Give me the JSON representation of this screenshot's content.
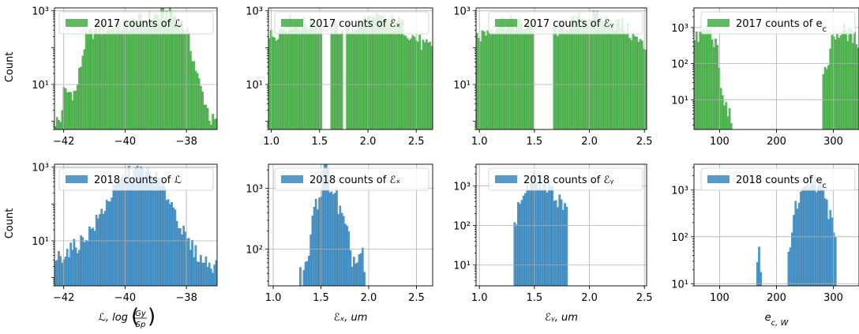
{
  "colors": {
    "green": "#2ca02c",
    "blue": "#1f77b4",
    "grid": "#b0b0b0",
    "edge": "#000000"
  },
  "y_axis_label": "Count",
  "chart_data": [
    {
      "type": "bar",
      "legend": "2017 counts of ℒ",
      "color": "#2ca02c",
      "xlim": [
        -42.3,
        -37.0
      ],
      "x_ticks": [
        -42,
        -40,
        -38
      ],
      "x_tick_labels": [
        "−42",
        "−40",
        "−38"
      ],
      "ylog": true,
      "ylim": [
        0.6,
        1200
      ],
      "y_ticks": [
        10,
        1000
      ],
      "y_tick_labels": [
        "10¹",
        "10³"
      ],
      "xlabel": "",
      "ylabel": "Count",
      "grid": true,
      "legend_loc": "top-right",
      "profile": [
        [
          -42.1,
          1
        ],
        [
          -42.0,
          6
        ],
        [
          -41.6,
          6
        ],
        [
          -41.3,
          150
        ],
        [
          -41.0,
          300
        ],
        [
          -40.0,
          400
        ],
        [
          -39.0,
          700
        ],
        [
          -38.5,
          900
        ],
        [
          -38.0,
          300
        ],
        [
          -37.6,
          12
        ],
        [
          -37.3,
          2
        ],
        [
          -37.2,
          1
        ]
      ]
    },
    {
      "type": "bar",
      "legend": "2017 counts of ℰₓ",
      "color": "#2ca02c",
      "xlim": [
        0.97,
        2.67
      ],
      "x_ticks": [
        1.0,
        1.5,
        2.0,
        2.5
      ],
      "x_tick_labels": [
        "1.0",
        "1.5",
        "2.0",
        "2.5"
      ],
      "ylog": true,
      "ylim": [
        0.6,
        1200
      ],
      "y_ticks": [
        10,
        1000
      ],
      "y_tick_labels": [
        "10¹",
        "10³"
      ],
      "xlabel": "",
      "ylabel": "",
      "grid": true,
      "legend_loc": "top-right",
      "gaps": [
        [
          1.52,
          1.62
        ],
        [
          1.74,
          1.78
        ]
      ],
      "profile": [
        [
          1.0,
          200
        ],
        [
          1.2,
          500
        ],
        [
          1.5,
          400
        ],
        [
          1.8,
          300
        ],
        [
          2.0,
          600
        ],
        [
          2.3,
          500
        ],
        [
          2.6,
          100
        ]
      ]
    },
    {
      "type": "bar",
      "legend": "2017 counts of ℰᵧ",
      "color": "#2ca02c",
      "xlim": [
        0.97,
        2.52
      ],
      "x_ticks": [
        1.0,
        1.5,
        2.0,
        2.5
      ],
      "x_tick_labels": [
        "1.0",
        "1.5",
        "2.0",
        "2.5"
      ],
      "ylog": true,
      "ylim": [
        0.6,
        1200
      ],
      "y_ticks": [
        10,
        1000
      ],
      "y_tick_labels": [
        "10¹",
        "10³"
      ],
      "xlabel": "",
      "ylabel": "",
      "grid": true,
      "legend_loc": "top-right",
      "gaps": [
        [
          1.5,
          1.67
        ]
      ],
      "profile": [
        [
          1.0,
          200
        ],
        [
          1.2,
          500
        ],
        [
          1.4,
          400
        ],
        [
          1.7,
          300
        ],
        [
          2.0,
          700
        ],
        [
          2.3,
          400
        ],
        [
          2.5,
          100
        ]
      ]
    },
    {
      "type": "bar",
      "legend": "2017 counts of e_c",
      "color": "#2ca02c",
      "xlim": [
        55,
        345
      ],
      "x_ticks": [
        100,
        200,
        300
      ],
      "x_tick_labels": [
        "100",
        "200",
        "300"
      ],
      "ylog": true,
      "ylim": [
        1.5,
        3500
      ],
      "y_ticks": [
        10,
        100,
        1000
      ],
      "y_tick_labels": [
        "10¹",
        "10²",
        "10³"
      ],
      "xlabel": "",
      "ylabel": "",
      "grid": true,
      "legend_loc": "top-right",
      "ranges": [
        [
          55,
          124
        ],
        [
          280,
          345
        ]
      ],
      "profile": [
        [
          55,
          400
        ],
        [
          80,
          1000
        ],
        [
          95,
          300
        ],
        [
          105,
          10
        ],
        [
          115,
          5
        ],
        [
          124,
          2
        ],
        [
          280,
          20
        ],
        [
          300,
          600
        ],
        [
          320,
          800
        ],
        [
          345,
          400
        ]
      ]
    },
    {
      "type": "bar",
      "legend": "2018 counts of ℒ",
      "color": "#1f77b4",
      "xlim": [
        -42.3,
        -37.0
      ],
      "x_ticks": [
        -42,
        -40,
        -38
      ],
      "x_tick_labels": [
        "−42",
        "−40",
        "−38"
      ],
      "ylog": true,
      "ylim": [
        0.6,
        1200
      ],
      "y_ticks": [
        10,
        1000
      ],
      "y_tick_labels": [
        "10¹",
        "10³"
      ],
      "xlabel": "ℒ, log",
      "xlabel_num": "Gy",
      "xlabel_den": "Sp",
      "ylabel": "Count",
      "grid": true,
      "legend_loc": "top-right",
      "profile": [
        [
          -42.3,
          3
        ],
        [
          -41.5,
          8
        ],
        [
          -41.0,
          25
        ],
        [
          -40.5,
          150
        ],
        [
          -40.0,
          600
        ],
        [
          -39.5,
          800
        ],
        [
          -39.0,
          500
        ],
        [
          -38.5,
          120
        ],
        [
          -38.0,
          10
        ],
        [
          -37.5,
          3
        ],
        [
          -37.0,
          2
        ]
      ]
    },
    {
      "type": "bar",
      "legend": "2018 counts of ℰₓ",
      "color": "#1f77b4",
      "xlim": [
        0.95,
        2.67
      ],
      "x_ticks": [
        1.0,
        1.5,
        2.0,
        2.5
      ],
      "x_tick_labels": [
        "1.0",
        "1.5",
        "2.0",
        "2.5"
      ],
      "ylog": true,
      "ylim": [
        25,
        2500
      ],
      "y_ticks": [
        100,
        1000
      ],
      "y_tick_labels": [
        "10²",
        "10³"
      ],
      "xlabel": "ℰₓ, um",
      "ylabel": "",
      "grid": true,
      "legend_loc": "top-right",
      "ranges": [
        [
          1.28,
          1.97
        ]
      ],
      "profile": [
        [
          1.28,
          30
        ],
        [
          1.35,
          50
        ],
        [
          1.45,
          600
        ],
        [
          1.55,
          2000
        ],
        [
          1.65,
          800
        ],
        [
          1.75,
          200
        ],
        [
          1.85,
          60
        ],
        [
          1.93,
          80
        ],
        [
          1.97,
          30
        ]
      ]
    },
    {
      "type": "bar",
      "legend": "2018 counts of ℰᵧ",
      "color": "#1f77b4",
      "xlim": [
        0.97,
        2.52
      ],
      "x_ticks": [
        1.0,
        1.5,
        2.0,
        2.5
      ],
      "x_tick_labels": [
        "1.0",
        "1.5",
        "2.0",
        "2.5"
      ],
      "ylog": true,
      "ylim": [
        3,
        3500
      ],
      "y_ticks": [
        10,
        100,
        1000
      ],
      "y_tick_labels": [
        "10¹",
        "10²",
        "10³"
      ],
      "xlabel": "ℰᵧ, um",
      "ylabel": "",
      "grid": true,
      "legend_loc": "top-right",
      "ranges": [
        [
          1.32,
          1.81
        ]
      ],
      "profile": [
        [
          1.32,
          100
        ],
        [
          1.38,
          500
        ],
        [
          1.5,
          1500
        ],
        [
          1.6,
          1000
        ],
        [
          1.7,
          500
        ],
        [
          1.81,
          300
        ]
      ]
    },
    {
      "type": "bar",
      "legend": "2018 counts of e_c",
      "color": "#1f77b4",
      "xlim": [
        55,
        345
      ],
      "x_ticks": [
        100,
        200,
        300
      ],
      "x_tick_labels": [
        "100",
        "200",
        "300"
      ],
      "ylog": true,
      "ylim": [
        9,
        3500
      ],
      "y_ticks": [
        10,
        100,
        1000
      ],
      "y_tick_labels": [
        "10¹",
        "10²",
        "10³"
      ],
      "xlabel": "e_c, W",
      "ylabel": "",
      "grid": true,
      "legend_loc": "top-right",
      "ranges": [
        [
          165,
          175
        ],
        [
          220,
          305
        ]
      ],
      "profile": [
        [
          165,
          12
        ],
        [
          168,
          130
        ],
        [
          171,
          15
        ],
        [
          175,
          10
        ],
        [
          220,
          30
        ],
        [
          230,
          300
        ],
        [
          250,
          900
        ],
        [
          265,
          2000
        ],
        [
          280,
          800
        ],
        [
          295,
          300
        ],
        [
          305,
          100
        ]
      ]
    }
  ]
}
